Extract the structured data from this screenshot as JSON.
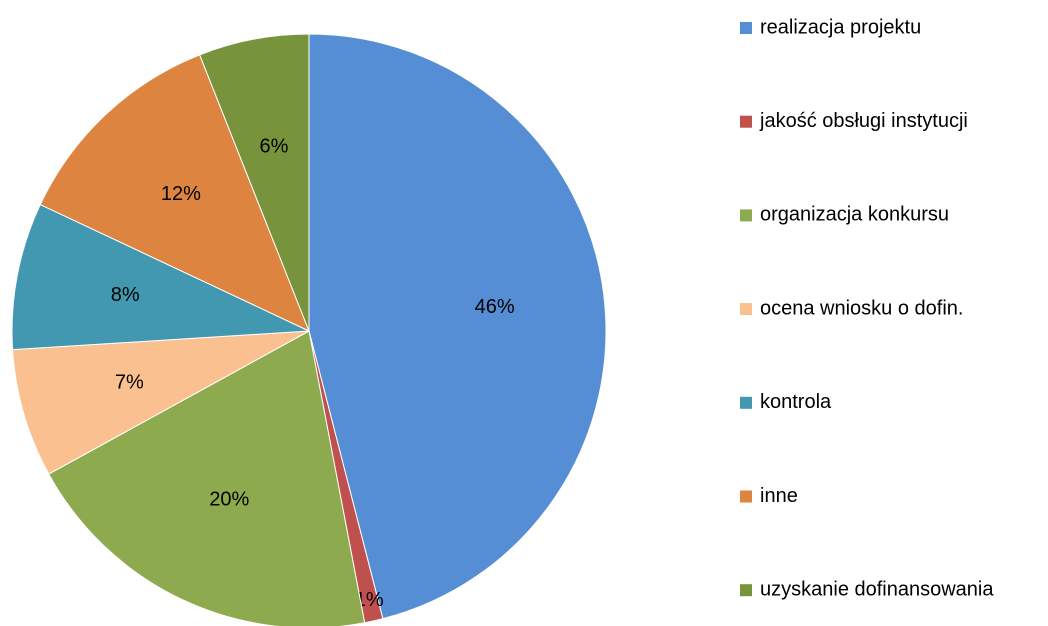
{
  "chart_data": {
    "type": "pie",
    "categories": [
      "realizacja projektu",
      "jakość obsługi instytucji",
      "organizacja konkursu",
      "ocena wniosku o dofin.",
      "kontrola",
      "inne",
      "uzyskanie dofinansowania"
    ],
    "values": [
      46,
      1,
      20,
      7,
      8,
      12,
      6
    ],
    "value_labels": [
      "46%",
      "1%",
      "20%",
      "7%",
      "8%",
      "12%",
      "6%"
    ],
    "colors": [
      "#558ed5",
      "#c0504d",
      "#8eaa4f",
      "#fac090",
      "#4298b0",
      "#dd8440",
      "#77933c"
    ],
    "legend": "right"
  }
}
